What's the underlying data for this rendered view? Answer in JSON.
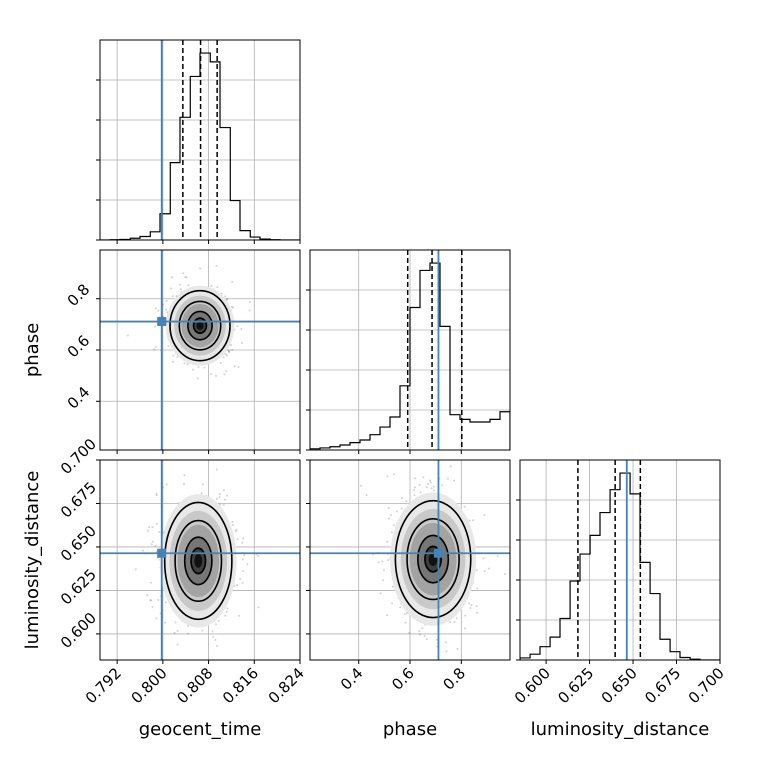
{
  "chart_data": {
    "type": "corner",
    "parameters": [
      "geocent_time",
      "phase",
      "luminosity_distance"
    ],
    "labels": {
      "geocent_time": "geocent_time",
      "phase": "phase",
      "luminosity_distance": "luminosity_distance"
    },
    "ranges": {
      "geocent_time": [
        0.789,
        0.824
      ],
      "phase": [
        0.21,
        0.99
      ],
      "luminosity_distance": [
        0.585,
        0.7
      ]
    },
    "ticks": {
      "geocent_time": [
        0.792,
        0.8,
        0.808,
        0.816,
        0.824
      ],
      "phase": [
        0.4,
        0.6,
        0.8
      ],
      "luminosity_distance": [
        0.6,
        0.625,
        0.65,
        0.675,
        0.7
      ]
    },
    "tick_labels": {
      "geocent_time": [
        "0.792",
        "0.800",
        "0.808",
        "0.816",
        "0.824"
      ],
      "phase": [
        "0.4",
        "0.6",
        "0.8"
      ],
      "luminosity_distance_x": [
        "0.600",
        "0.625",
        "0.650",
        "0.675",
        "0.700"
      ],
      "luminosity_distance_y": [
        "0.600",
        "0.625",
        "0.650",
        "0.675",
        "0.700"
      ]
    },
    "truths": {
      "geocent_time": 0.7998,
      "phase": 0.711,
      "luminosity_distance": 0.6464
    },
    "quantiles": {
      "geocent_time": [
        0.8035,
        0.8066,
        0.8095
      ],
      "phase": [
        0.591,
        0.686,
        0.802
      ],
      "luminosity_distance": [
        0.6183,
        0.6397,
        0.6542
      ]
    },
    "histograms": {
      "geocent_time": {
        "edges": [
          0.789,
          0.7908,
          0.7925,
          0.7943,
          0.796,
          0.7978,
          0.7995,
          0.8013,
          0.803,
          0.8048,
          0.8065,
          0.8083,
          0.81,
          0.8118,
          0.8135,
          0.8153,
          0.817,
          0.8188,
          0.8205,
          0.8223,
          0.824
        ],
        "counts": [
          0,
          1,
          2,
          6,
          12,
          28,
          90,
          265,
          420,
          560,
          640,
          610,
          385,
          135,
          32,
          10,
          3,
          1,
          0,
          0
        ]
      },
      "phase": {
        "edges": [
          0.21,
          0.249,
          0.288,
          0.327,
          0.366,
          0.405,
          0.444,
          0.483,
          0.522,
          0.561,
          0.6,
          0.639,
          0.678,
          0.717,
          0.756,
          0.795,
          0.834,
          0.873,
          0.912,
          0.951,
          0.99
        ],
        "counts": [
          4,
          7,
          11,
          17,
          25,
          34,
          52,
          78,
          112,
          218,
          484,
          610,
          635,
          420,
          120,
          104,
          95,
          95,
          104,
          130
        ]
      },
      "luminosity_distance": {
        "edges": [
          0.585,
          0.5908,
          0.5965,
          0.6023,
          0.608,
          0.6138,
          0.6195,
          0.6253,
          0.631,
          0.6368,
          0.6425,
          0.6483,
          0.654,
          0.6598,
          0.6655,
          0.6713,
          0.677,
          0.6828,
          0.6885,
          0.6943,
          0.7
        ],
        "counts": [
          5,
          14,
          32,
          55,
          100,
          190,
          255,
          300,
          355,
          410,
          450,
          400,
          235,
          160,
          50,
          20,
          6,
          2,
          0,
          0
        ]
      }
    },
    "density_peaks": [
      {
        "x": "geocent_time",
        "y": "phase",
        "center": [
          0.8065,
          0.695
        ],
        "spread": [
          0.0025,
          0.065
        ]
      },
      {
        "x": "geocent_time",
        "y": "luminosity_distance",
        "center": [
          0.8062,
          0.642
        ],
        "spread": [
          0.0028,
          0.016
        ]
      },
      {
        "x": "phase",
        "y": "luminosity_distance",
        "center": [
          0.69,
          0.643
        ],
        "spread": [
          0.07,
          0.016
        ]
      }
    ],
    "grid": true,
    "colors": {
      "truth": "#4682b4",
      "histogram": "#000000",
      "quantile": "#000000"
    }
  }
}
